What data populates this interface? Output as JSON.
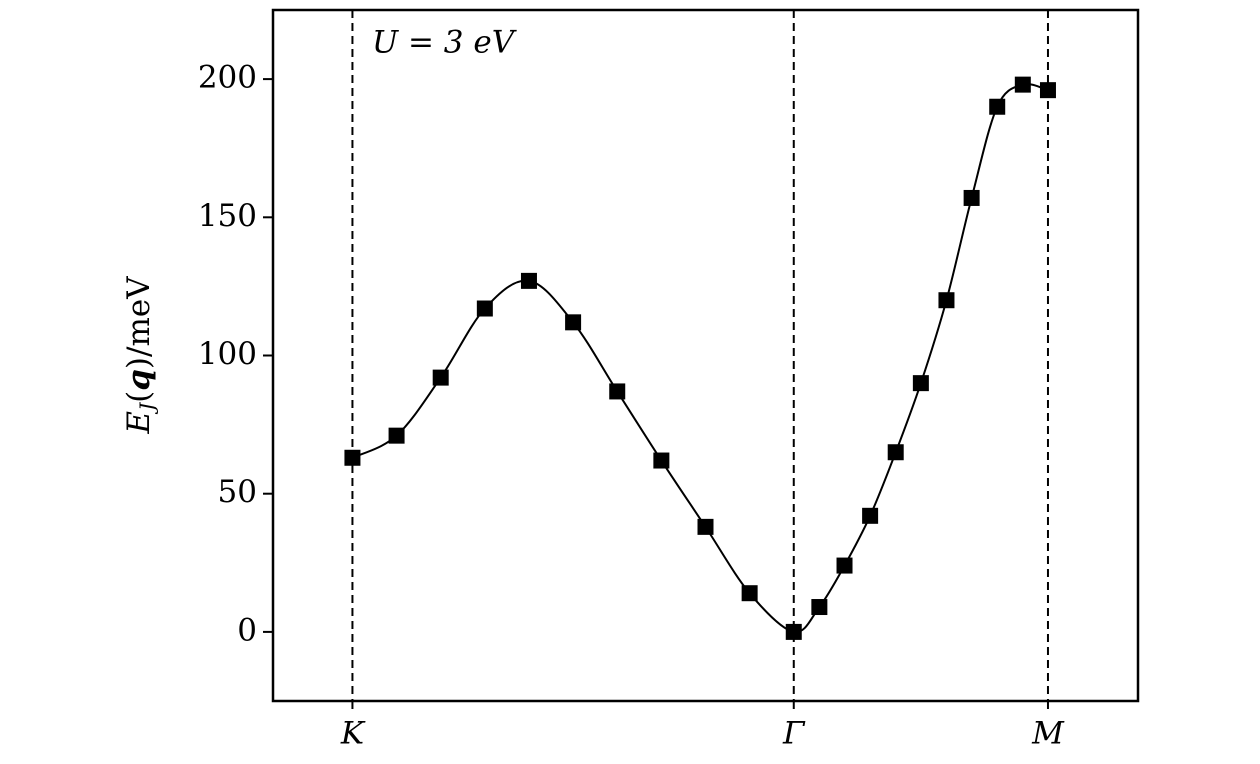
{
  "chart_data": {
    "type": "scatter",
    "y_label": [
      "E",
      "J",
      "(",
      "q",
      ")/meV"
    ],
    "annotation": "U = 3 eV",
    "x": [
      0,
      0.1,
      0.2,
      0.3,
      0.4,
      0.5,
      0.6,
      0.7,
      0.8,
      0.9,
      1,
      1.058,
      1.115,
      1.173,
      1.231,
      1.288,
      1.346,
      1.403,
      1.461,
      1.519,
      1.576
    ],
    "series": [
      {
        "color": "#000000",
        "values": [
          63,
          71,
          92,
          117,
          127,
          112,
          87,
          62,
          38,
          14,
          0,
          9,
          24,
          42,
          65,
          90,
          120,
          157,
          190,
          198,
          196
        ]
      }
    ],
    "xlim": [
      -0.18,
      1.78
    ],
    "xticks": [
      {
        "value": 0,
        "label": "K"
      },
      {
        "value": 1,
        "label": "Γ"
      },
      {
        "value": 1.576,
        "label": "M"
      }
    ],
    "ylim": [
      -25,
      225
    ],
    "yticks": [
      0,
      50,
      100,
      150,
      200
    ],
    "line": true,
    "markers": "square",
    "dashed_xtick_lines": true
  }
}
